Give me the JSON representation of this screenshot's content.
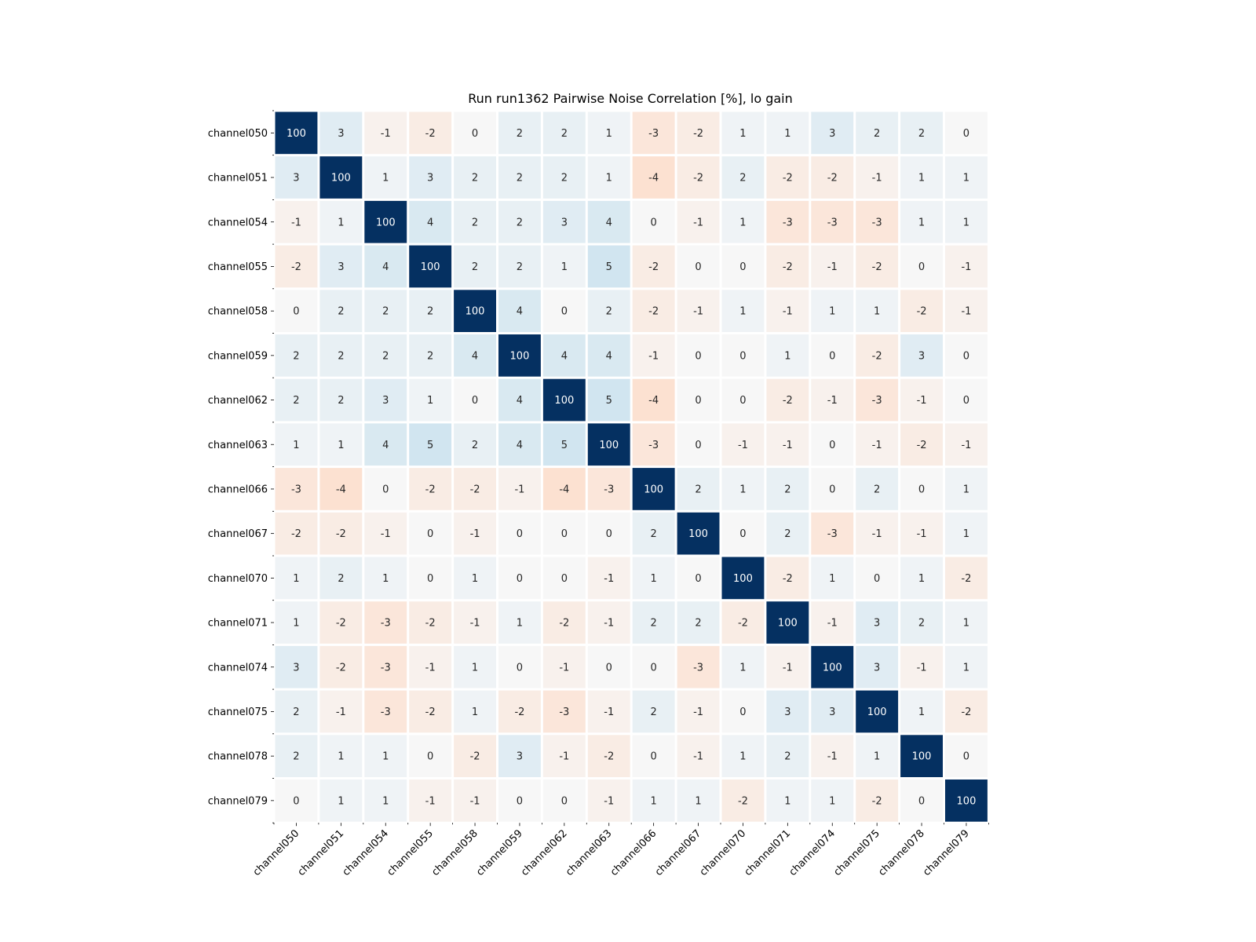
{
  "chart_data": {
    "type": "heatmap",
    "title": "Run run1362 Pairwise Noise Correlation [%], lo gain",
    "xlabel": "",
    "ylabel": "",
    "labels": [
      "channel050",
      "channel051",
      "channel054",
      "channel055",
      "channel058",
      "channel059",
      "channel062",
      "channel063",
      "channel066",
      "channel067",
      "channel070",
      "channel071",
      "channel074",
      "channel075",
      "channel078",
      "channel079"
    ],
    "values": [
      [
        100,
        3,
        -1,
        -2,
        0,
        2,
        2,
        1,
        -3,
        -2,
        1,
        1,
        3,
        2,
        2,
        0
      ],
      [
        3,
        100,
        1,
        3,
        2,
        2,
        2,
        1,
        -4,
        -2,
        2,
        -2,
        -2,
        -1,
        1,
        1
      ],
      [
        -1,
        1,
        100,
        4,
        2,
        2,
        3,
        4,
        0,
        -1,
        1,
        -3,
        -3,
        -3,
        1,
        1
      ],
      [
        -2,
        3,
        4,
        100,
        2,
        2,
        1,
        5,
        -2,
        0,
        0,
        -2,
        -1,
        -2,
        0,
        -1
      ],
      [
        0,
        2,
        2,
        2,
        100,
        4,
        0,
        2,
        -2,
        -1,
        1,
        -1,
        1,
        1,
        -2,
        -1
      ],
      [
        2,
        2,
        2,
        2,
        4,
        100,
        4,
        4,
        -1,
        0,
        0,
        1,
        0,
        -2,
        3,
        0
      ],
      [
        2,
        2,
        3,
        1,
        0,
        4,
        100,
        5,
        -4,
        0,
        0,
        -2,
        -1,
        -3,
        -1,
        0
      ],
      [
        1,
        1,
        4,
        5,
        2,
        4,
        5,
        100,
        -3,
        0,
        -1,
        -1,
        0,
        -1,
        -2,
        -1
      ],
      [
        -3,
        -4,
        0,
        -2,
        -2,
        -1,
        -4,
        -3,
        100,
        2,
        1,
        2,
        0,
        2,
        0,
        1
      ],
      [
        -2,
        -2,
        -1,
        0,
        -1,
        0,
        0,
        0,
        2,
        100,
        0,
        2,
        -3,
        -1,
        -1,
        1
      ],
      [
        1,
        2,
        1,
        0,
        1,
        0,
        0,
        -1,
        1,
        0,
        100,
        -2,
        1,
        0,
        1,
        -2
      ],
      [
        1,
        -2,
        -3,
        -2,
        -1,
        1,
        -2,
        -1,
        2,
        2,
        -2,
        100,
        -1,
        3,
        2,
        1
      ],
      [
        3,
        -2,
        -3,
        -1,
        1,
        0,
        -1,
        0,
        0,
        -3,
        1,
        -1,
        100,
        3,
        -1,
        1
      ],
      [
        2,
        -1,
        -3,
        -2,
        1,
        -2,
        -3,
        -1,
        2,
        -1,
        0,
        3,
        3,
        100,
        1,
        -2
      ],
      [
        2,
        1,
        1,
        0,
        -2,
        3,
        -1,
        -2,
        0,
        -1,
        1,
        2,
        -1,
        1,
        100,
        0
      ],
      [
        0,
        1,
        1,
        -1,
        -1,
        0,
        0,
        -1,
        1,
        1,
        -2,
        1,
        1,
        -2,
        0,
        100
      ]
    ],
    "colormap": {
      "negative": "#67001f",
      "zero": "#f7f7f7",
      "positive": "#053061",
      "diagonal": "#053061"
    },
    "grid": false,
    "legend": "none"
  }
}
